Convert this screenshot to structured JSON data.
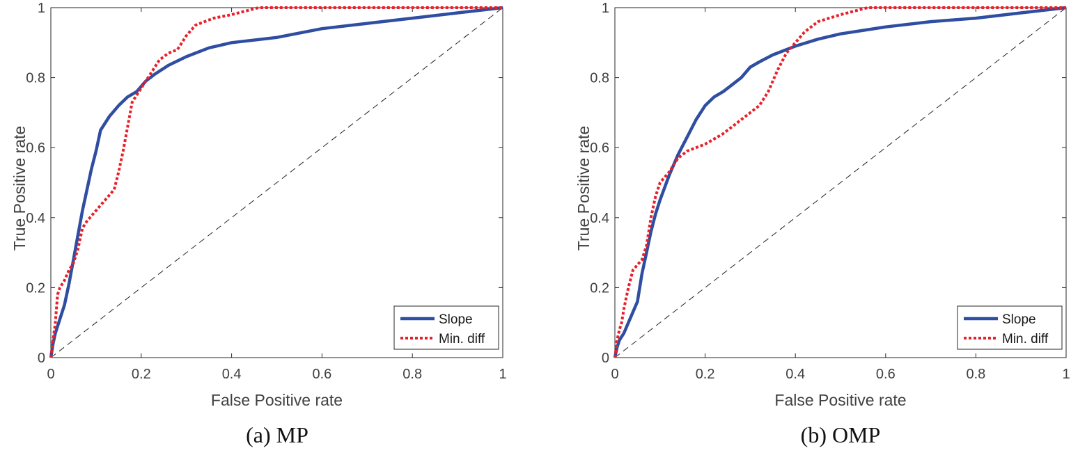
{
  "chart_data": [
    {
      "type": "line",
      "title": "",
      "caption": "(a) MP",
      "xlabel": "False Positive rate",
      "ylabel": "True Positive rate",
      "xlim": [
        0,
        1
      ],
      "ylim": [
        0,
        1
      ],
      "xticks": [
        0,
        0.2,
        0.4,
        0.6,
        0.8,
        1
      ],
      "yticks": [
        0,
        0.2,
        0.4,
        0.6,
        0.8,
        1
      ],
      "xtick_labels": [
        "0",
        "0.2",
        "0.4",
        "0.6",
        "0.8",
        "1"
      ],
      "ytick_labels": [
        "0",
        "0.2",
        "0.4",
        "0.6",
        "0.8",
        "1"
      ],
      "grid": false,
      "legend_position": "bottom-right",
      "reference_line": {
        "name": "chance",
        "x": [
          0,
          1
        ],
        "y": [
          0,
          1
        ],
        "color": "#222222",
        "style": "dashed"
      },
      "series": [
        {
          "name": "Slope",
          "color": "#2f4ea1",
          "style": "solid",
          "x": [
            0,
            0.005,
            0.01,
            0.02,
            0.03,
            0.04,
            0.05,
            0.06,
            0.07,
            0.08,
            0.09,
            0.1,
            0.11,
            0.12,
            0.13,
            0.15,
            0.17,
            0.19,
            0.21,
            0.23,
            0.26,
            0.3,
            0.35,
            0.4,
            0.5,
            0.6,
            0.7,
            0.8,
            0.9,
            1.0
          ],
          "y": [
            0,
            0.04,
            0.07,
            0.11,
            0.15,
            0.21,
            0.28,
            0.35,
            0.42,
            0.48,
            0.54,
            0.59,
            0.65,
            0.67,
            0.69,
            0.72,
            0.745,
            0.76,
            0.79,
            0.81,
            0.835,
            0.86,
            0.885,
            0.9,
            0.915,
            0.94,
            0.955,
            0.97,
            0.985,
            1.0
          ]
        },
        {
          "name": "Min. diff",
          "color": "#e8202a",
          "style": "dotted",
          "x": [
            0,
            0.005,
            0.01,
            0.015,
            0.02,
            0.03,
            0.04,
            0.05,
            0.06,
            0.07,
            0.08,
            0.1,
            0.12,
            0.14,
            0.15,
            0.16,
            0.17,
            0.18,
            0.2,
            0.22,
            0.24,
            0.26,
            0.28,
            0.3,
            0.32,
            0.36,
            0.4,
            0.46,
            0.6,
            0.8,
            1.0
          ],
          "y": [
            0,
            0.05,
            0.1,
            0.18,
            0.2,
            0.22,
            0.25,
            0.27,
            0.31,
            0.37,
            0.39,
            0.42,
            0.45,
            0.48,
            0.53,
            0.59,
            0.66,
            0.73,
            0.77,
            0.81,
            0.85,
            0.87,
            0.88,
            0.92,
            0.95,
            0.97,
            0.98,
            1.0,
            1.0,
            1.0,
            1.0
          ]
        }
      ]
    },
    {
      "type": "line",
      "title": "",
      "caption": "(b) OMP",
      "xlabel": "False Positive rate",
      "ylabel": "True Positive rate",
      "xlim": [
        0,
        1
      ],
      "ylim": [
        0,
        1
      ],
      "xticks": [
        0,
        0.2,
        0.4,
        0.6,
        0.8,
        1
      ],
      "yticks": [
        0,
        0.2,
        0.4,
        0.6,
        0.8,
        1
      ],
      "xtick_labels": [
        "0",
        "0.2",
        "0.4",
        "0.6",
        "0.8",
        "1"
      ],
      "ytick_labels": [
        "0",
        "0.2",
        "0.4",
        "0.6",
        "0.8",
        "1"
      ],
      "grid": false,
      "legend_position": "bottom-right",
      "reference_line": {
        "name": "chance",
        "x": [
          0,
          1
        ],
        "y": [
          0,
          1
        ],
        "color": "#222222",
        "style": "dashed"
      },
      "series": [
        {
          "name": "Slope",
          "color": "#2f4ea1",
          "style": "solid",
          "x": [
            0,
            0.005,
            0.01,
            0.02,
            0.03,
            0.04,
            0.05,
            0.06,
            0.07,
            0.08,
            0.09,
            0.1,
            0.12,
            0.14,
            0.16,
            0.18,
            0.2,
            0.22,
            0.24,
            0.26,
            0.28,
            0.3,
            0.32,
            0.35,
            0.4,
            0.45,
            0.5,
            0.6,
            0.7,
            0.8,
            0.9,
            1.0
          ],
          "y": [
            0,
            0.03,
            0.05,
            0.07,
            0.1,
            0.13,
            0.16,
            0.24,
            0.3,
            0.36,
            0.41,
            0.45,
            0.52,
            0.58,
            0.63,
            0.68,
            0.72,
            0.745,
            0.76,
            0.78,
            0.8,
            0.83,
            0.845,
            0.865,
            0.89,
            0.91,
            0.925,
            0.945,
            0.96,
            0.97,
            0.985,
            1.0
          ]
        },
        {
          "name": "Min. diff",
          "color": "#e8202a",
          "style": "dotted",
          "x": [
            0,
            0.005,
            0.01,
            0.015,
            0.02,
            0.03,
            0.04,
            0.06,
            0.07,
            0.08,
            0.09,
            0.1,
            0.12,
            0.14,
            0.16,
            0.2,
            0.24,
            0.28,
            0.32,
            0.34,
            0.36,
            0.38,
            0.4,
            0.42,
            0.45,
            0.5,
            0.56,
            0.7,
            0.8,
            0.9,
            1.0
          ],
          "y": [
            0,
            0.05,
            0.08,
            0.1,
            0.14,
            0.2,
            0.25,
            0.28,
            0.32,
            0.4,
            0.46,
            0.5,
            0.53,
            0.57,
            0.59,
            0.61,
            0.64,
            0.68,
            0.72,
            0.76,
            0.82,
            0.87,
            0.9,
            0.93,
            0.96,
            0.98,
            1.0,
            1.0,
            1.0,
            1.0,
            1.0
          ]
        }
      ]
    }
  ]
}
